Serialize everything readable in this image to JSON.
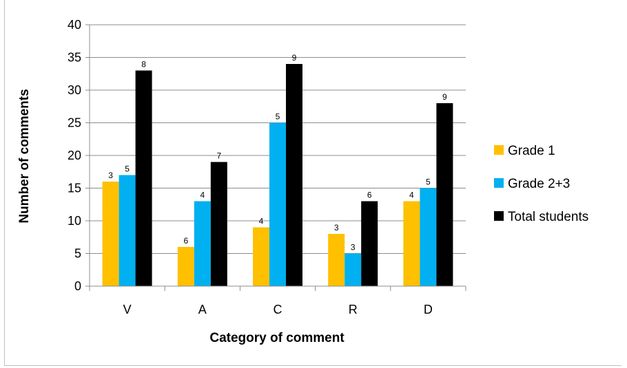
{
  "chart_data": {
    "type": "bar",
    "categories": [
      "V",
      "A",
      "C",
      "R",
      "D"
    ],
    "series": [
      {
        "name": "Grade 1",
        "values": [
          16,
          6,
          9,
          8,
          13
        ],
        "labels": [
          "3",
          "6",
          "4",
          "3",
          "4"
        ],
        "color": "#FFC000"
      },
      {
        "name": "Grade 2+3",
        "values": [
          17,
          13,
          25,
          5,
          15
        ],
        "labels": [
          "5",
          "4",
          "5",
          "3",
          "5"
        ],
        "color": "#00B0F0"
      },
      {
        "name": "Total students",
        "values": [
          33,
          19,
          34,
          13,
          28
        ],
        "labels": [
          "8",
          "7",
          "9",
          "6",
          "9"
        ],
        "color": "#000000"
      }
    ],
    "title": "",
    "xlabel": "Category of comment",
    "ylabel": "Number of comments",
    "ylim": [
      0,
      40
    ],
    "yticks": [
      0,
      5,
      10,
      15,
      20,
      25,
      30,
      35,
      40
    ],
    "grid": true,
    "legend": "right"
  }
}
